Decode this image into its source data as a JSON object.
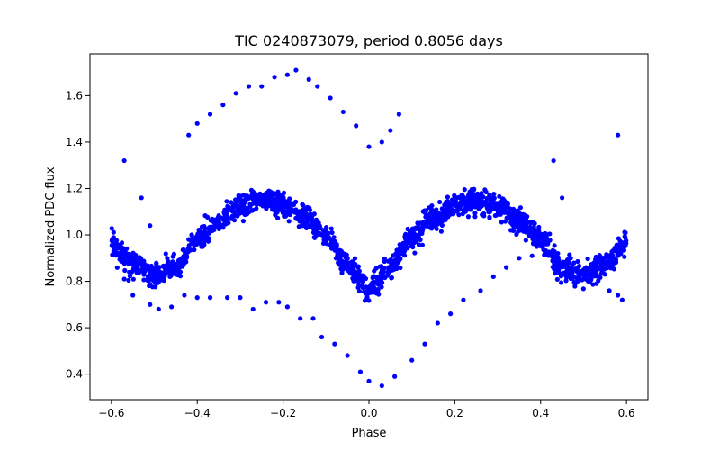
{
  "chart_data": {
    "type": "scatter",
    "title": "TIC 0240873079, period 0.8056 days",
    "xlabel": "Phase",
    "ylabel": "Normalized PDC flux",
    "xlim": [
      -0.65,
      0.65
    ],
    "ylim": [
      0.29,
      1.78
    ],
    "xticks": [
      -0.6,
      -0.4,
      -0.2,
      0.0,
      0.2,
      0.4,
      0.6
    ],
    "xtick_labels": [
      "−0.6",
      "−0.4",
      "−0.2",
      "0.0",
      "0.2",
      "0.4",
      "0.6"
    ],
    "yticks": [
      0.4,
      0.6,
      0.8,
      1.0,
      1.2,
      1.4,
      1.6
    ],
    "ytick_labels": [
      "0.4",
      "0.6",
      "0.8",
      "1.0",
      "1.2",
      "1.4",
      "1.6"
    ],
    "grid": false,
    "legend": "none",
    "marker_color": "#0000ff",
    "series": [
      {
        "band_model": {
          "description": "dense band of phase-folded points following a double-humped light curve",
          "phase_range": [
            -0.6,
            0.6
          ],
          "count": 1900,
          "scatter_sd": 0.025,
          "knots": [
            [
              -0.6,
              0.96
            ],
            [
              -0.55,
              0.88
            ],
            [
              -0.5,
              0.82
            ],
            [
              -0.45,
              0.86
            ],
            [
              -0.4,
              0.98
            ],
            [
              -0.35,
              1.06
            ],
            [
              -0.3,
              1.12
            ],
            [
              -0.25,
              1.15
            ],
            [
              -0.2,
              1.13
            ],
            [
              -0.15,
              1.07
            ],
            [
              -0.1,
              0.99
            ],
            [
              -0.05,
              0.87
            ],
            [
              0.0,
              0.77
            ],
            [
              0.05,
              0.86
            ],
            [
              0.1,
              0.99
            ],
            [
              0.15,
              1.07
            ],
            [
              0.2,
              1.13
            ],
            [
              0.25,
              1.15
            ],
            [
              0.3,
              1.12
            ],
            [
              0.35,
              1.06
            ],
            [
              0.4,
              0.98
            ],
            [
              0.45,
              0.86
            ],
            [
              0.5,
              0.82
            ],
            [
              0.55,
              0.88
            ],
            [
              0.6,
              0.96
            ]
          ]
        },
        "x": [
          -0.42,
          -0.4,
          -0.37,
          -0.34,
          -0.31,
          -0.28,
          -0.25,
          -0.22,
          -0.19,
          -0.17,
          -0.14,
          -0.12,
          -0.09,
          -0.06,
          -0.03,
          0.0,
          0.03,
          0.05,
          0.07,
          -0.57,
          -0.55,
          -0.51,
          -0.49,
          -0.46,
          -0.43,
          -0.4,
          -0.37,
          -0.33,
          -0.3,
          -0.27,
          -0.24,
          -0.21,
          -0.19,
          -0.16,
          -0.13,
          -0.11,
          -0.08,
          -0.05,
          -0.02,
          0.0,
          0.03,
          0.06,
          0.1,
          0.13,
          0.16,
          0.19,
          0.22,
          0.26,
          0.29,
          0.32,
          0.35,
          0.38,
          0.41,
          0.44,
          0.47,
          0.5,
          0.53,
          0.56,
          0.58,
          -0.57,
          -0.53,
          -0.51,
          0.43,
          0.45,
          0.58,
          0.59
        ],
        "y": [
          1.43,
          1.48,
          1.52,
          1.56,
          1.61,
          1.64,
          1.64,
          1.68,
          1.69,
          1.71,
          1.67,
          1.64,
          1.59,
          1.53,
          1.47,
          1.38,
          1.4,
          1.45,
          1.52,
          0.81,
          0.74,
          0.7,
          0.68,
          0.69,
          0.74,
          0.73,
          0.73,
          0.73,
          0.73,
          0.68,
          0.71,
          0.71,
          0.69,
          0.64,
          0.64,
          0.56,
          0.53,
          0.48,
          0.41,
          0.37,
          0.35,
          0.39,
          0.46,
          0.53,
          0.62,
          0.66,
          0.72,
          0.76,
          0.82,
          0.86,
          0.9,
          0.91,
          0.92,
          0.92,
          0.9,
          0.85,
          0.79,
          0.76,
          0.74,
          1.32,
          1.16,
          1.04,
          1.32,
          1.16,
          1.43,
          0.72
        ]
      }
    ]
  }
}
